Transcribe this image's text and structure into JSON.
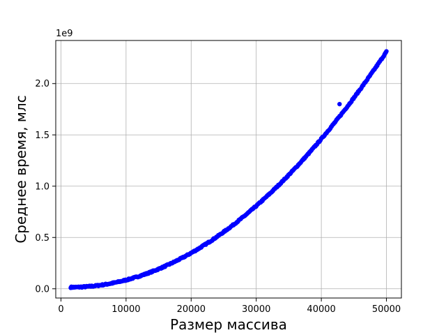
{
  "chart_data": {
    "type": "scatter",
    "title": "",
    "xlabel": "Размер массива",
    "ylabel": "Среднее время, млс",
    "y_offset_label": "1e9",
    "xlim": [
      -800,
      52300
    ],
    "ylim": [
      -0.09,
      2.42
    ],
    "x_ticks": [
      {
        "value": 0,
        "label": "0"
      },
      {
        "value": 10000,
        "label": "10000"
      },
      {
        "value": 20000,
        "label": "20000"
      },
      {
        "value": 30000,
        "label": "30000"
      },
      {
        "value": 40000,
        "label": "40000"
      },
      {
        "value": 50000,
        "label": "50000"
      }
    ],
    "y_ticks": [
      {
        "value": 0.0,
        "label": "0.0"
      },
      {
        "value": 0.5,
        "label": "0.5"
      },
      {
        "value": 1.0,
        "label": "1.0"
      },
      {
        "value": 1.5,
        "label": "1.5"
      },
      {
        "value": 2.0,
        "label": "2.0"
      }
    ],
    "grid": true,
    "series_color": "#0000ff",
    "x_range": [
      1500,
      50000
    ],
    "trend": {
      "form": "quadratic",
      "y_at_x_max": 2.31,
      "y_at_x_min": 0.015
    },
    "points_sample": [
      {
        "x": 1500,
        "y": 0.015
      },
      {
        "x": 5000,
        "y": 0.025
      },
      {
        "x": 10000,
        "y": 0.09
      },
      {
        "x": 15000,
        "y": 0.215
      },
      {
        "x": 20000,
        "y": 0.375
      },
      {
        "x": 25000,
        "y": 0.575
      },
      {
        "x": 30000,
        "y": 0.83
      },
      {
        "x": 35000,
        "y": 1.13
      },
      {
        "x": 40000,
        "y": 1.48
      },
      {
        "x": 45000,
        "y": 1.87
      },
      {
        "x": 50000,
        "y": 2.31
      }
    ],
    "outliers": [
      {
        "x": 42800,
        "y": 1.8
      }
    ]
  }
}
